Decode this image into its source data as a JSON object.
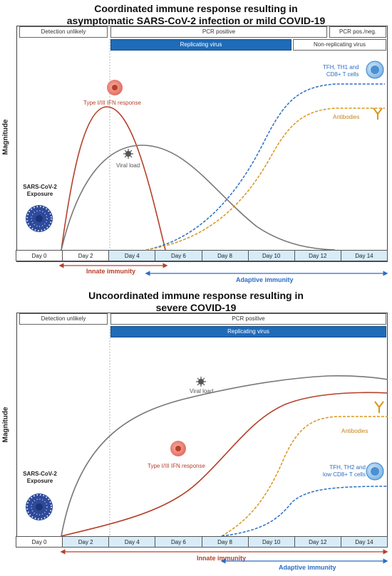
{
  "panel1": {
    "title_line1": "Coordinated immune response resulting in",
    "title_line2": "asymptomatic SARS-CoV-2 infection or mild COVID-19",
    "ylabel": "Magnitude",
    "detection_unlikely": "Detection unlikely",
    "pcr_positive": "PCR positive",
    "pcr_pos_neg": "PCR pos./neg.",
    "replicating_virus": "Replicating virus",
    "non_replicating_virus": "Non-replicating virus",
    "ifn_label": "Type I/III IFN response",
    "viral_load_label": "Viral load",
    "antibodies_label": "Antibodies",
    "tcells_label": "TFH, TH1 and",
    "tcells_label2": "CD8+ T cells",
    "exposure_line1": "SARS-CoV-2",
    "exposure_line2": "Exposure",
    "days": [
      "Day 0",
      "Day 2",
      "Day 4",
      "Day 6",
      "Day 8",
      "Day 10",
      "Day 12",
      "Day 14"
    ],
    "innate_immunity": "Innate immunity",
    "adaptive_immunity": "Adaptive immunity"
  },
  "panel2": {
    "title_line1": "Uncoordinated immune response resulting in",
    "title_line2": "severe COVID-19",
    "ylabel": "Magnitude",
    "detection_unlikely": "Detection unlikely",
    "pcr_positive": "PCR positive",
    "replicating_virus": "Replicating virus",
    "viral_load_label": "Viral load",
    "antibodies_label": "Antibodies",
    "ifn_label": "Type I/III IFN response",
    "tcells_label": "TFH, TH2 and",
    "tcells_label2": "low CD8+ T cells",
    "exposure_line1": "SARS-CoV-2",
    "exposure_line2": "Exposure",
    "days": [
      "Day 0",
      "Day 2",
      "Day 4",
      "Day 6",
      "Day 8",
      "Day 10",
      "Day 12",
      "Day 14"
    ],
    "innate_immunity": "Innate immunity",
    "adaptive_immunity": "Adaptive immunity"
  },
  "colors": {
    "ifn": "#b5402a",
    "viral_load": "#7a7a7a",
    "antibodies": "#d9951a",
    "tcells": "#2b6ec4",
    "replicating": "#1f6bb8",
    "axis_fill": "#d8ecf8"
  },
  "icons": [
    "virus-particle-icon",
    "interferon-cell-icon",
    "viral-load-icon",
    "antibody-icon",
    "t-cell-icon"
  ]
}
